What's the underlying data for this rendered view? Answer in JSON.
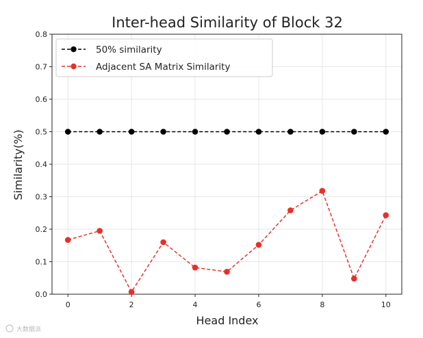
{
  "chart_data": {
    "type": "line",
    "title": "Inter-head Similarity of Block 32",
    "xlabel": "Head Index",
    "ylabel": "Similarity(%)",
    "x": [
      0,
      1,
      2,
      3,
      4,
      5,
      6,
      7,
      8,
      9,
      10
    ],
    "xticks": [
      0,
      2,
      4,
      6,
      8,
      10
    ],
    "yticks": [
      0.0,
      0.1,
      0.2,
      0.3,
      0.4,
      0.5,
      0.6,
      0.7,
      0.8
    ],
    "xlim": [
      -0.5,
      10.5
    ],
    "ylim": [
      0.0,
      0.8
    ],
    "grid": true,
    "legend_position": "top-left",
    "series": [
      {
        "name": "50% similarity",
        "color": "#000000",
        "linestyle": "dashed",
        "marker": "circle",
        "values": [
          0.5,
          0.5,
          0.5,
          0.5,
          0.5,
          0.5,
          0.5,
          0.5,
          0.5,
          0.5,
          0.5
        ]
      },
      {
        "name": "Adjacent SA Matrix Similarity",
        "color": "#e8302a",
        "linestyle": "dashed",
        "marker": "circle",
        "values": [
          0.167,
          0.195,
          0.007,
          0.16,
          0.082,
          0.069,
          0.152,
          0.258,
          0.318,
          0.048,
          0.243
        ]
      }
    ]
  },
  "watermark": {
    "text": "大数据派"
  }
}
